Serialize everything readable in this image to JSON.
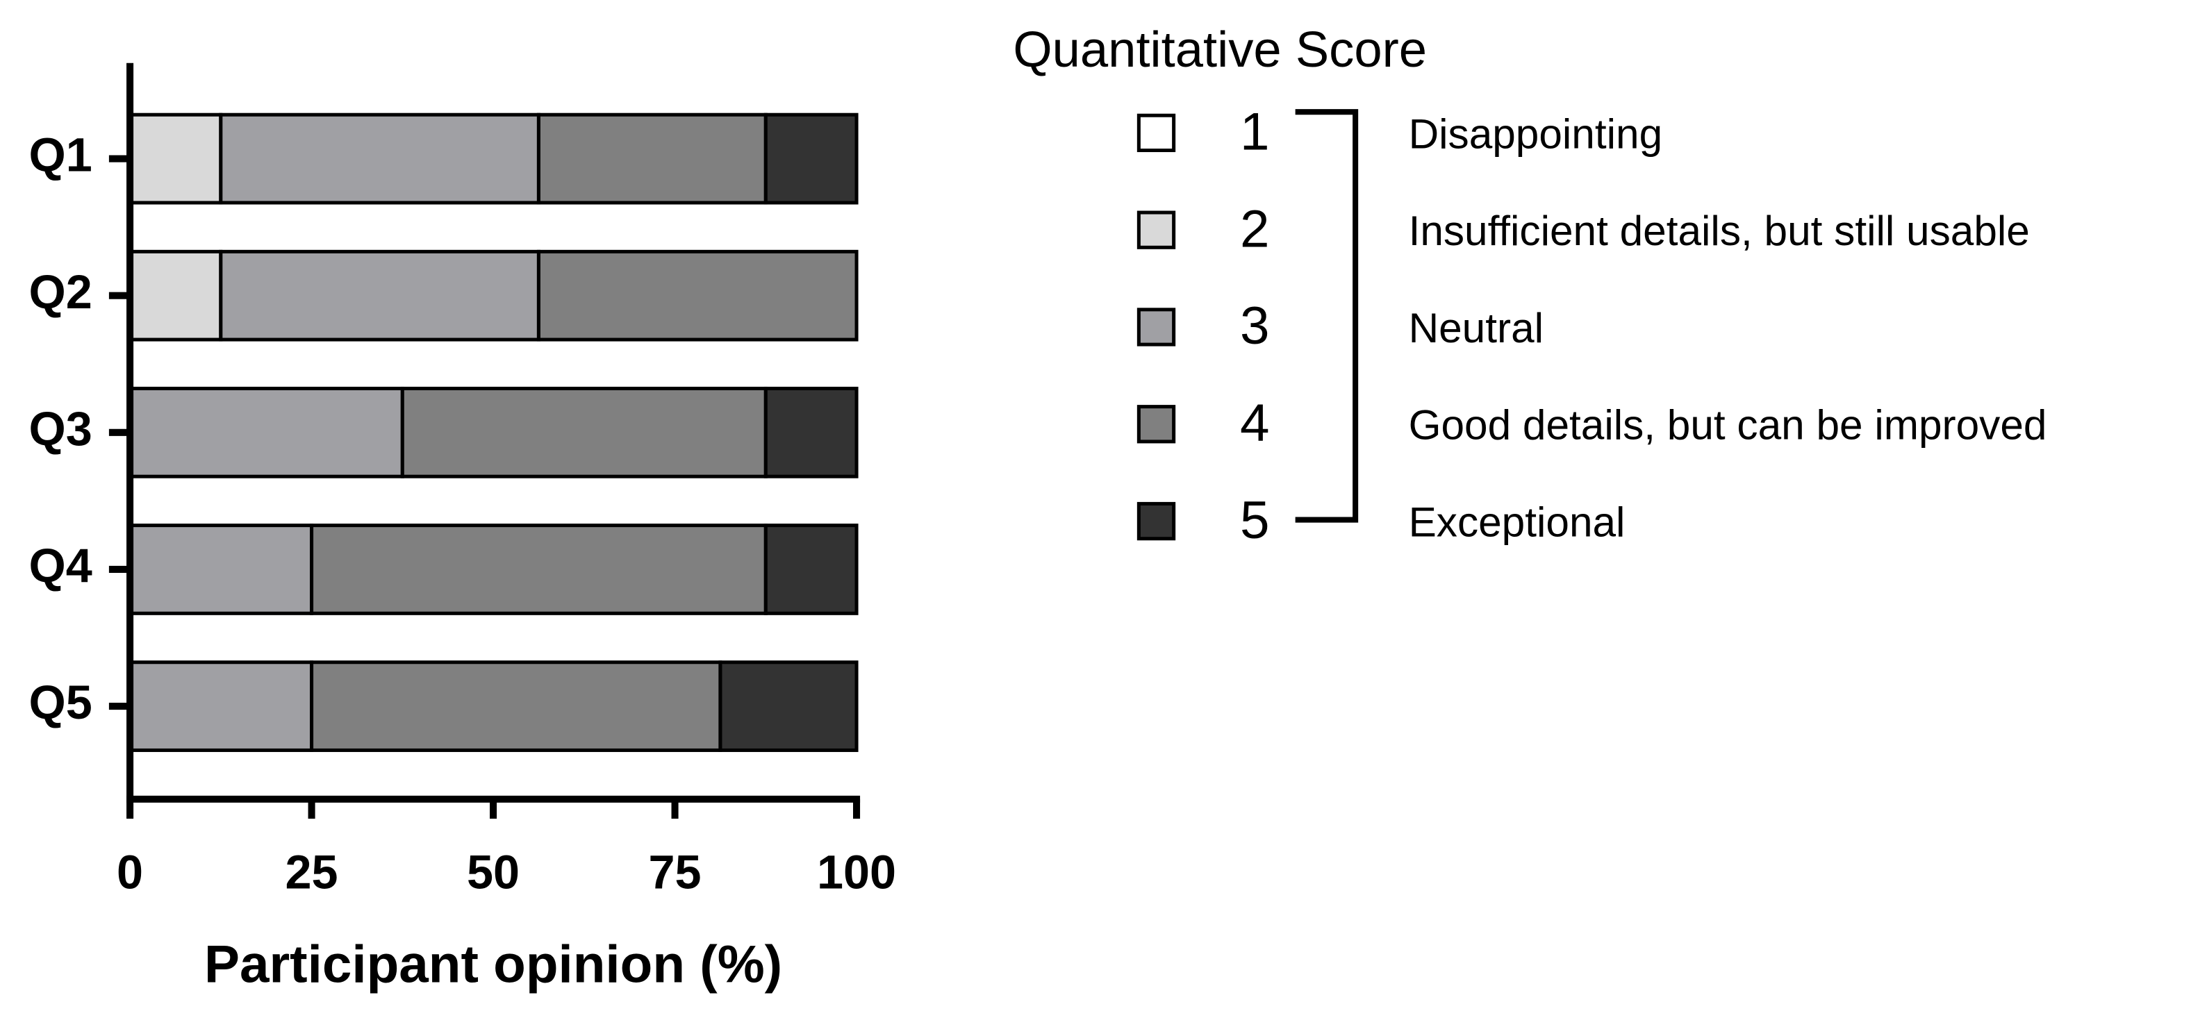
{
  "chart_data": {
    "type": "stacked-barh",
    "x_label": "Participant opinion (%)",
    "legend_title": "Quantitative Score",
    "categories": [
      "Q1",
      "Q2",
      "Q3",
      "Q4",
      "Q5"
    ],
    "series": [
      {
        "name": "1",
        "label": "Disappointing",
        "color": "#ffffff",
        "values": [
          0,
          0,
          0,
          0,
          0
        ]
      },
      {
        "name": "2",
        "label": "Insufficient details, but still usable",
        "color": "#d9d9d9",
        "values": [
          12.5,
          12.5,
          0,
          0,
          0
        ]
      },
      {
        "name": "3",
        "label": "Neutral",
        "color": "#a0a0a4",
        "values": [
          43.75,
          43.75,
          37.5,
          25,
          25
        ]
      },
      {
        "name": "4",
        "label": "Good details, but can be improved",
        "color": "#808080",
        "values": [
          31.25,
          43.75,
          50,
          62.5,
          56.25
        ]
      },
      {
        "name": "5",
        "label": "Exceptional",
        "color": "#333333",
        "values": [
          12.5,
          0,
          12.5,
          12.5,
          18.75
        ]
      }
    ],
    "xlim": [
      0,
      100
    ],
    "xticks": [
      0,
      25,
      50,
      75,
      100
    ]
  }
}
